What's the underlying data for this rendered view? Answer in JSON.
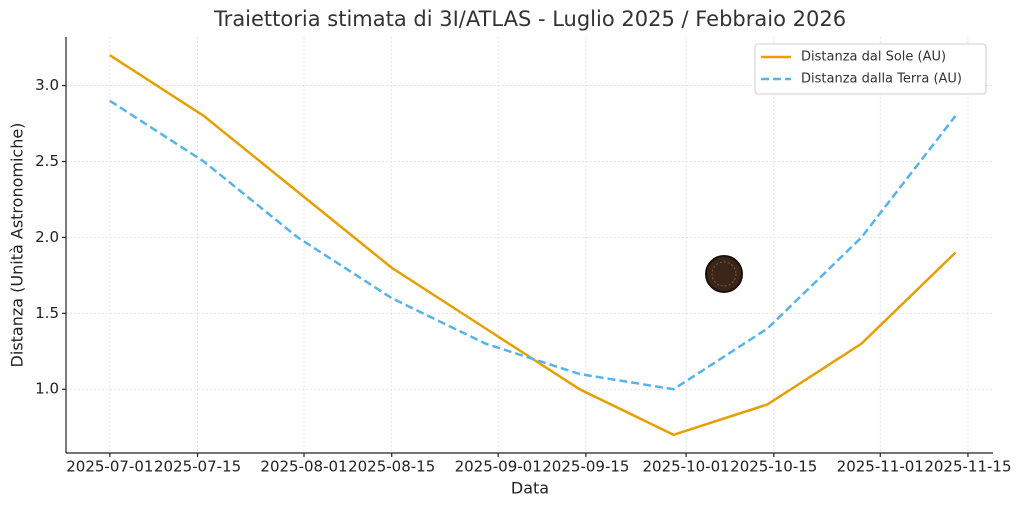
{
  "chart_data": {
    "type": "line",
    "title": "Traiettoria stimata di 3I/ATLAS - Luglio 2025 / Febbraio 2026",
    "x_label": "Data",
    "y_label": "Distanza (Unità Astronomiche)",
    "x": [
      "2025-07-01",
      "2025-07-16",
      "2025-07-31",
      "2025-08-15",
      "2025-08-30",
      "2025-09-14",
      "2025-09-29",
      "2025-10-14",
      "2025-10-29",
      "2025-11-13"
    ],
    "series": [
      {
        "name": "Distanza dal Sole (AU)",
        "color": "#E69F00",
        "dash": false,
        "values": [
          3.2,
          2.8,
          2.3,
          1.8,
          1.4,
          1.0,
          0.7,
          0.9,
          1.3,
          1.9
        ]
      },
      {
        "name": "Distanza dalla Terra (AU)",
        "color": "#56B4E9",
        "dash": true,
        "values": [
          2.9,
          2.5,
          2.0,
          1.6,
          1.3,
          1.1,
          1.0,
          1.4,
          2.0,
          2.8
        ]
      }
    ],
    "xlim": [
      "2025-06-24",
      "2025-11-19"
    ],
    "xticks": [
      "2025-07-01",
      "2025-07-15",
      "2025-08-01",
      "2025-08-15",
      "2025-09-01",
      "2025-09-15",
      "2025-10-01",
      "2025-10-15",
      "2025-11-01",
      "2025-11-15"
    ],
    "ylim": [
      0.58,
      3.32
    ],
    "yticks": [
      {
        "value": 1,
        "label": "1.0"
      },
      {
        "value": 1.5,
        "label": "1.5"
      },
      {
        "value": 2,
        "label": "2.0"
      },
      {
        "value": 2.5,
        "label": "2.5"
      },
      {
        "value": 3,
        "label": "3.0"
      }
    ],
    "grid": true,
    "legend": "upper-right"
  }
}
